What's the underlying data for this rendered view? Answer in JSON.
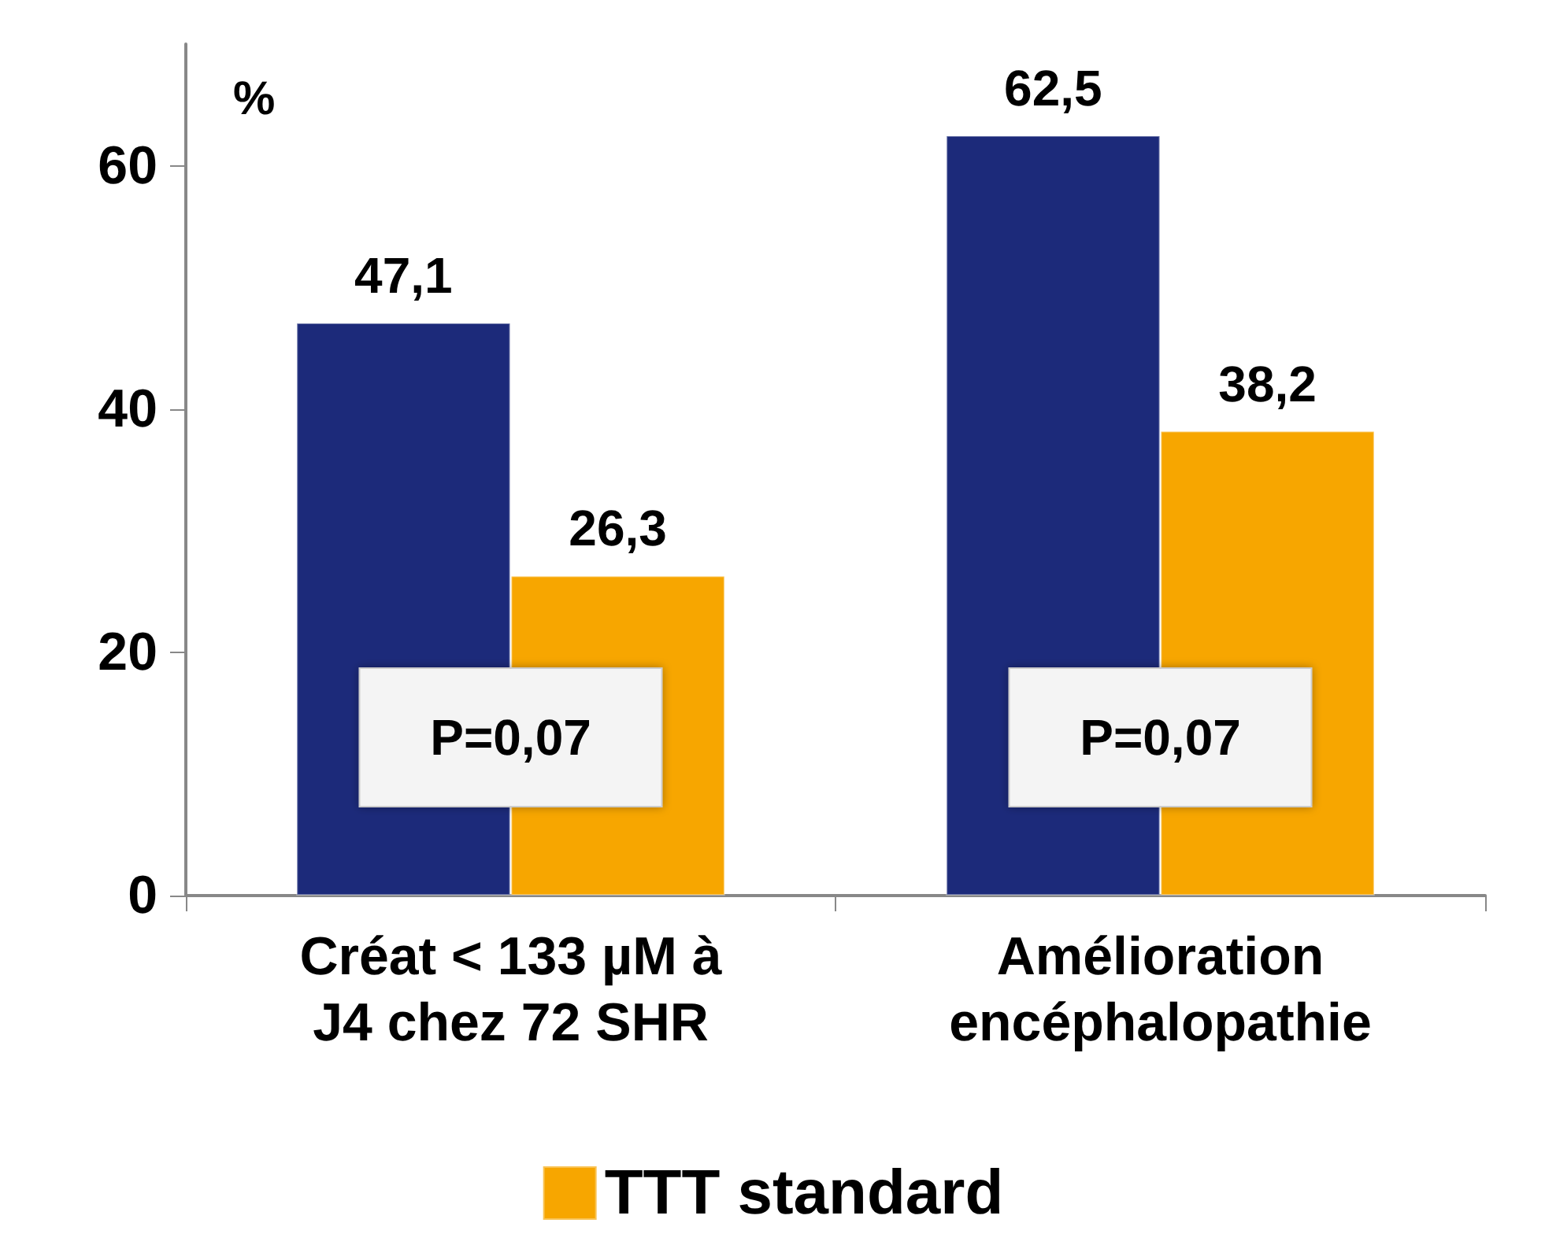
{
  "chart_data": {
    "type": "bar",
    "ylabel": "%",
    "categories": [
      "Créat < 133 µM à\nJ4 chez 72 SHR",
      "Amélioration\nencéphalopathie"
    ],
    "series": [
      {
        "color": "#1c2a7a",
        "values": [
          47.1,
          62.5
        ],
        "value_labels": [
          "47,1",
          "62,5"
        ]
      },
      {
        "name": "TTT standard",
        "color": "#f7a600",
        "values": [
          26.3,
          38.2
        ],
        "value_labels": [
          "26,3",
          "38,2"
        ]
      }
    ],
    "ylim": [
      0,
      70
    ],
    "yticks": [
      0,
      20,
      40,
      60
    ],
    "grid": false,
    "legend": "bottom",
    "annotations": [
      {
        "text": "P=0,07",
        "x": "Créat < 133 µM à\nJ4 chez 72 SHR",
        "y": 13
      },
      {
        "text": "P=0,07",
        "x": "Amélioration\nencéphalopathie",
        "y": 13
      }
    ]
  }
}
